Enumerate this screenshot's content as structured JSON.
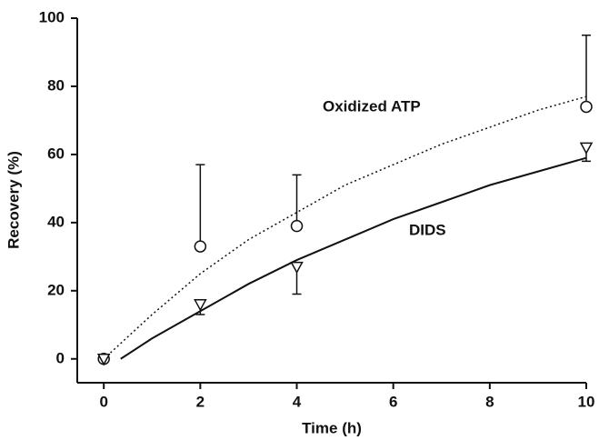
{
  "chart_data": {
    "type": "scatter",
    "x_label": "Time (h)",
    "y_label": "Recovery (%)",
    "xlim": [
      -0.55,
      10
    ],
    "xticks": [
      0,
      2,
      4,
      6,
      8,
      10
    ],
    "ylim": [
      -7,
      100
    ],
    "yticks": [
      0,
      20,
      40,
      60,
      80,
      100
    ],
    "grid": false,
    "series": [
      {
        "name": "Oxidized ATP",
        "color": "#111111",
        "marker": "circle",
        "line_style": "dotted",
        "x": [
          0,
          2,
          4,
          10
        ],
        "values": [
          0,
          33,
          39,
          74
        ],
        "errors": [
          null,
          24,
          15,
          21
        ],
        "error_direction": "up",
        "curve": {
          "x": [
            0,
            1,
            2,
            3,
            4,
            5,
            6,
            7,
            8,
            9,
            10
          ],
          "values": [
            0,
            13,
            25,
            35,
            43,
            51,
            57,
            63,
            68,
            73,
            77
          ]
        }
      },
      {
        "name": "DIDS",
        "color": "#111111",
        "marker": "triangle-down",
        "line_style": "solid",
        "x": [
          0,
          2,
          4,
          10
        ],
        "values": [
          0,
          16,
          27,
          62
        ],
        "errors": [
          null,
          3,
          8,
          4
        ],
        "error_direction": "down",
        "curve": {
          "x": [
            0.35,
            1,
            2,
            3,
            4,
            5,
            6,
            7,
            8,
            9,
            10
          ],
          "values": [
            0,
            6,
            14,
            22,
            29,
            35,
            41,
            46,
            51,
            55,
            59
          ]
        }
      }
    ]
  }
}
